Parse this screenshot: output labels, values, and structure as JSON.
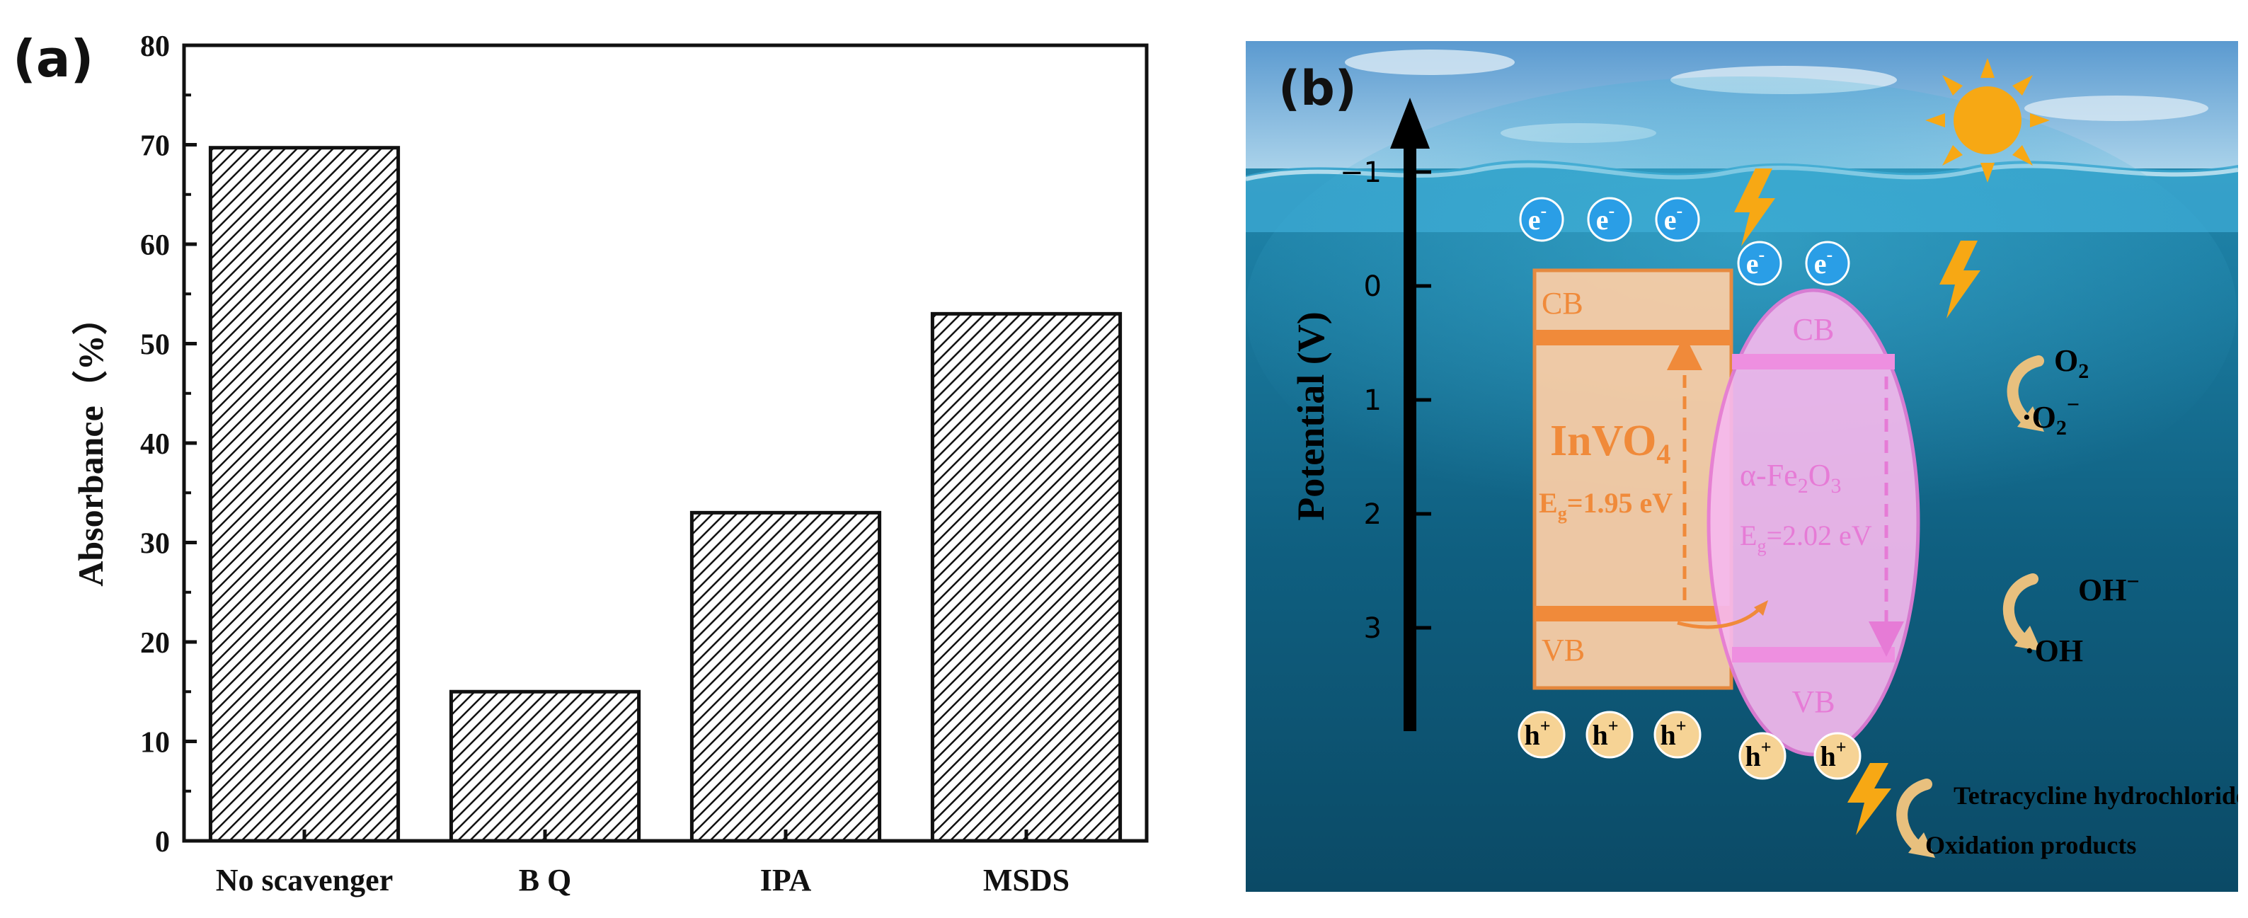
{
  "panel_a": {
    "label": "(a)"
  },
  "panel_b": {
    "label": "(b)",
    "axis_label": "Potential (V)",
    "ticks": [
      "−1",
      "0",
      "1",
      "2",
      "3"
    ],
    "invvo4": {
      "cb": "CB",
      "vb": "VB",
      "name_main": "InVO",
      "name_sub": "4",
      "eg_pre": "E",
      "eg_sub": "g",
      "eg_post": "=1.95 eV",
      "color": "#f08a3a"
    },
    "fe2o3": {
      "cb": "CB",
      "vb": "VB",
      "name_a": "α-Fe",
      "name_sub1": "2",
      "name_b": "O",
      "name_sub2": "3",
      "eg_pre": "E",
      "eg_sub": "g",
      "eg_post": "=2.02 eV",
      "color": "#e67bd6"
    },
    "electron": "e",
    "electron_sup": "-",
    "hole": "h",
    "hole_sup": "+",
    "o2": "O",
    "o2_sub": "2",
    "superoxide": "·O",
    "superoxide_sub": "2",
    "superoxide_sup": "−",
    "oh_minus": "OH",
    "oh_minus_sup": "−",
    "oh_radical": "·OH",
    "tc": "Tetracycline hydrochloride",
    "products": "Oxidation products"
  },
  "chart_data": {
    "type": "bar",
    "title": "",
    "xlabel": "",
    "ylabel": "Absorbance（%）",
    "categories": [
      "No scavenger",
      "B Q",
      "IPA",
      "MSDS"
    ],
    "values": [
      69.7,
      15,
      33,
      53
    ],
    "ylim": [
      0,
      80
    ],
    "yticks": [
      "0",
      "10",
      "20",
      "30",
      "40",
      "50",
      "60",
      "70",
      "80"
    ],
    "fill": "diagonal hatch, black on white"
  }
}
